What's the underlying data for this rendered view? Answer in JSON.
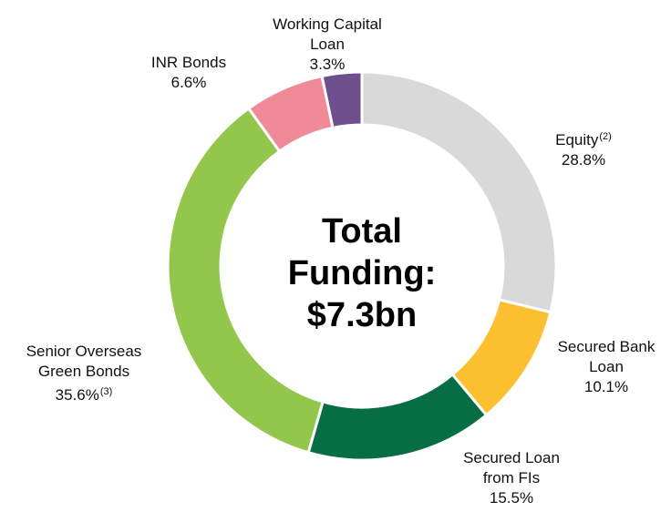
{
  "chart_data": {
    "type": "donut",
    "center_label": "Total Funding: $7.3bn",
    "categories": [
      "Equity",
      "Secured Bank Loan",
      "Secured Loan from FIs",
      "Senior Overseas Green Bonds",
      "INR Bonds",
      "Working Capital Loan"
    ],
    "values": [
      28.8,
      10.1,
      15.5,
      35.6,
      6.6,
      3.3
    ],
    "value_labels": [
      "28.8%",
      "10.1%",
      "15.5%",
      "35.6%",
      "6.6%",
      "3.3%"
    ],
    "name_footnotes": [
      "(2)",
      null,
      null,
      null,
      null,
      null
    ],
    "value_footnotes": [
      null,
      null,
      null,
      "(3)",
      null,
      null
    ],
    "colors": [
      "#d9d9d9",
      "#fbbf2f",
      "#076d44",
      "#92c74b",
      "#f08a96",
      "#6f4e8d"
    ]
  }
}
